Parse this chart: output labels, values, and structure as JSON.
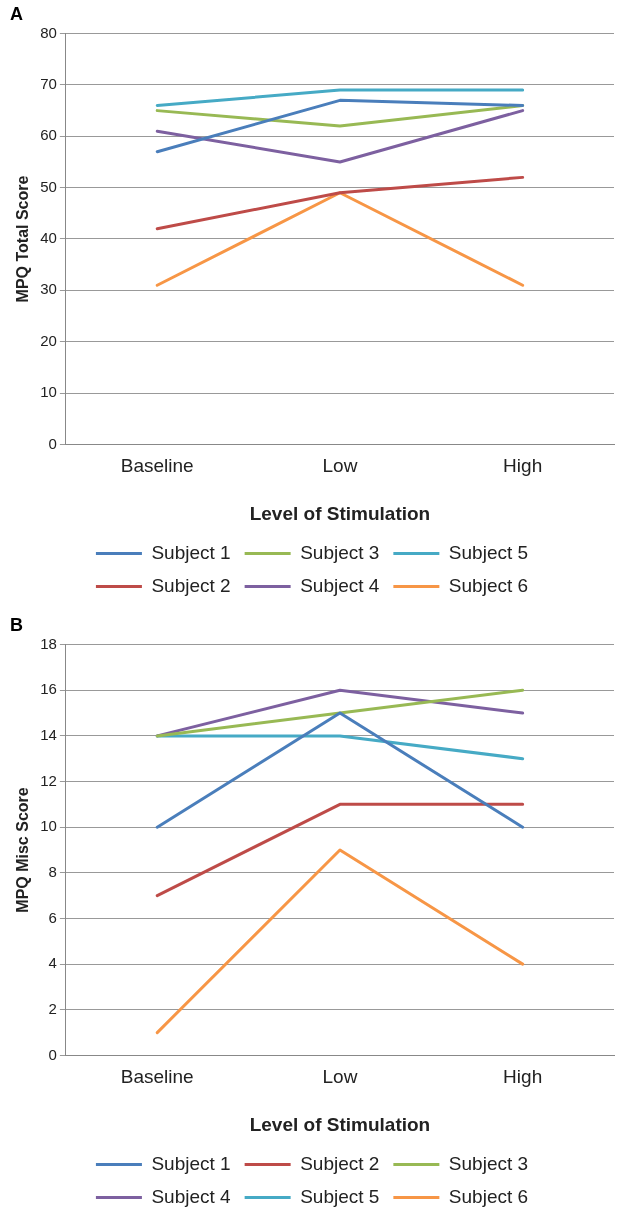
{
  "chart_data": [
    {
      "type": "line",
      "title": "A",
      "xlabel": "Level of Stimulation",
      "ylabel": "MPQ Total Score",
      "categories": [
        "Baseline",
        "Low",
        "High"
      ],
      "ylim": [
        0,
        80
      ],
      "yticks": [
        0,
        10,
        20,
        30,
        40,
        50,
        60,
        70,
        80
      ],
      "grid": "y",
      "legend": "bottom",
      "marker": "none",
      "line_style": "solid",
      "series": [
        {
          "name": "Subject 1",
          "color": "#4a7ebb",
          "values": [
            57,
            67,
            66
          ]
        },
        {
          "name": "Subject 3",
          "color": "#98b954",
          "values": [
            65,
            62,
            66
          ]
        },
        {
          "name": "Subject 5",
          "color": "#46aac5",
          "values": [
            66,
            69,
            69
          ]
        },
        {
          "name": "Subject 2",
          "color": "#be4b48",
          "values": [
            42,
            49,
            52
          ]
        },
        {
          "name": "Subject 4",
          "color": "#7d60a0",
          "values": [
            61,
            55,
            65
          ]
        },
        {
          "name": "Subject 6",
          "color": "#f79646",
          "values": [
            31,
            49,
            31
          ]
        }
      ]
    },
    {
      "type": "line",
      "title": "B",
      "xlabel": "Level of Stimulation",
      "ylabel": "MPQ Misc Score",
      "categories": [
        "Baseline",
        "Low",
        "High"
      ],
      "ylim": [
        0,
        18
      ],
      "yticks": [
        0,
        2,
        4,
        6,
        8,
        10,
        12,
        14,
        16,
        18
      ],
      "grid": "y",
      "legend": "bottom",
      "marker": "none",
      "line_style": "solid",
      "series": [
        {
          "name": "Subject 1",
          "color": "#4a7ebb",
          "values": [
            10,
            15,
            10
          ]
        },
        {
          "name": "Subject 2",
          "color": "#be4b48",
          "values": [
            7,
            11,
            11
          ]
        },
        {
          "name": "Subject 3",
          "color": "#98b954",
          "values": [
            14,
            15,
            16
          ]
        },
        {
          "name": "Subject 4",
          "color": "#7d60a0",
          "values": [
            14,
            16,
            15
          ]
        },
        {
          "name": "Subject 5",
          "color": "#46aac5",
          "values": [
            14,
            14,
            13
          ]
        },
        {
          "name": "Subject 6",
          "color": "#f79646",
          "values": [
            1,
            9,
            4
          ]
        }
      ]
    }
  ]
}
